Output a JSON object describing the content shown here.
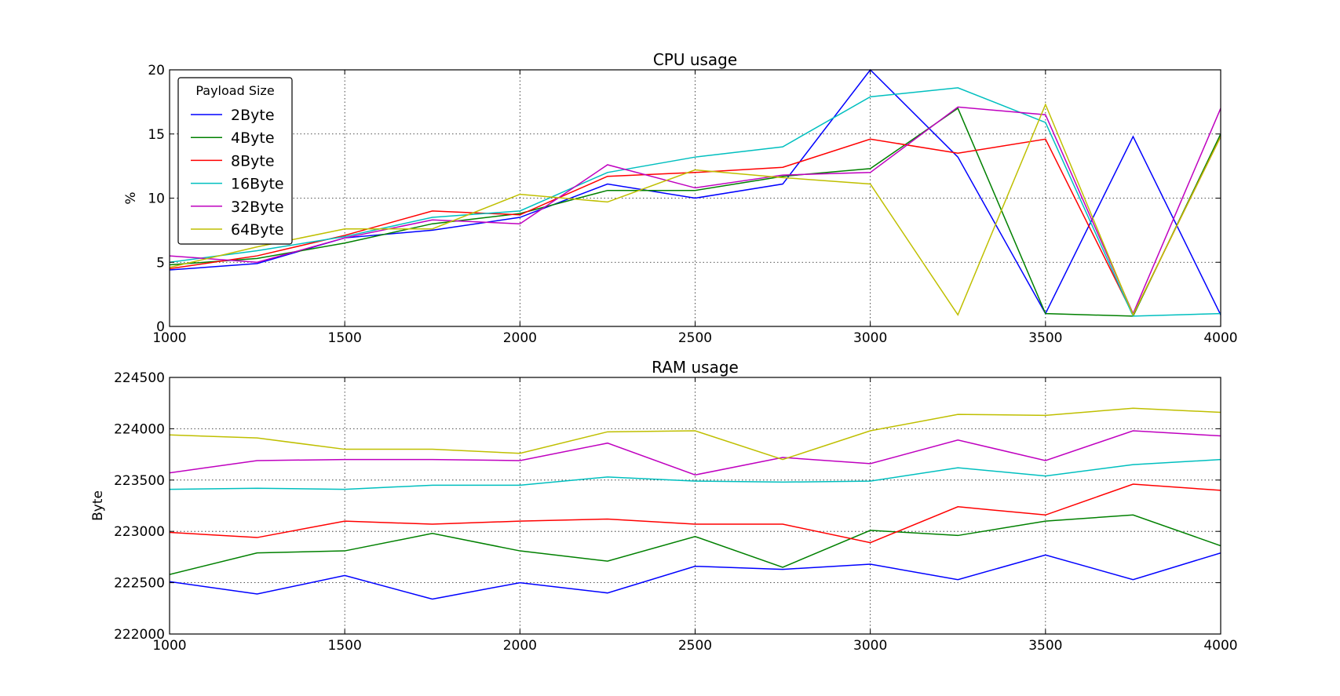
{
  "chart_data": [
    {
      "type": "line",
      "title": "CPU usage",
      "xlabel": "",
      "ylabel": "%",
      "xlim": [
        1000,
        4000
      ],
      "ylim": [
        0,
        20
      ],
      "x_ticks": [
        1000,
        1500,
        2000,
        2500,
        3000,
        3500,
        4000
      ],
      "y_ticks": [
        0,
        5,
        10,
        15,
        20
      ],
      "grid": true,
      "legend": {
        "title": "Payload Size",
        "placement": "top-left"
      },
      "x": [
        1000,
        1250,
        1500,
        1750,
        2000,
        2250,
        2500,
        2750,
        3000,
        3250,
        3500,
        3750,
        4000
      ],
      "series": [
        {
          "name": "2Byte",
          "color": "#0000ff",
          "values": [
            4.4,
            4.9,
            6.9,
            7.5,
            8.5,
            11.1,
            10.0,
            11.1,
            20.0,
            13.2,
            1.0,
            14.8,
            0.9
          ]
        },
        {
          "name": "4Byte",
          "color": "#008000",
          "values": [
            4.8,
            5.3,
            6.5,
            8.0,
            8.8,
            10.6,
            10.6,
            11.7,
            12.3,
            17.0,
            1.0,
            0.8,
            15.0
          ]
        },
        {
          "name": "8Byte",
          "color": "#ff0000",
          "values": [
            4.5,
            5.5,
            7.1,
            9.0,
            8.7,
            11.7,
            12.0,
            12.4,
            14.6,
            13.5,
            14.6,
            0.9,
            14.8
          ]
        },
        {
          "name": "16Byte",
          "color": "#00bfbf",
          "values": [
            5.0,
            5.9,
            7.0,
            8.5,
            9.0,
            12.0,
            13.2,
            14.0,
            17.9,
            18.6,
            15.9,
            0.8,
            1.0
          ]
        },
        {
          "name": "32Byte",
          "color": "#bf00bf",
          "values": [
            5.5,
            5.0,
            6.9,
            8.3,
            8.0,
            12.6,
            10.8,
            11.8,
            12.0,
            17.1,
            16.5,
            1.0,
            17.0
          ]
        },
        {
          "name": "64Byte",
          "color": "#bfbf00",
          "values": [
            4.6,
            6.2,
            7.6,
            7.6,
            10.3,
            9.7,
            12.2,
            11.6,
            11.1,
            0.9,
            17.3,
            0.9,
            14.8
          ]
        }
      ]
    },
    {
      "type": "line",
      "title": "RAM usage",
      "xlabel": "",
      "ylabel": "Byte",
      "xlim": [
        1000,
        4000
      ],
      "ylim": [
        222000,
        224500
      ],
      "x_ticks": [
        1000,
        1500,
        2000,
        2500,
        3000,
        3500,
        4000
      ],
      "y_ticks": [
        222000,
        222500,
        223000,
        223500,
        224000,
        224500
      ],
      "grid": true,
      "x": [
        1000,
        1250,
        1500,
        1750,
        2000,
        2250,
        2500,
        2750,
        3000,
        3250,
        3500,
        3750,
        4000
      ],
      "series": [
        {
          "color": "#0000ff",
          "values": [
            222510,
            222390,
            222570,
            222340,
            222500,
            222400,
            222660,
            222630,
            222680,
            222530,
            222770,
            222530,
            222790
          ]
        },
        {
          "color": "#008000",
          "values": [
            222580,
            222790,
            222810,
            222980,
            222810,
            222710,
            222950,
            222650,
            223010,
            222960,
            223100,
            223160,
            222860
          ]
        },
        {
          "color": "#ff0000",
          "values": [
            222990,
            222940,
            223100,
            223070,
            223100,
            223120,
            223070,
            223070,
            222890,
            223240,
            223160,
            223460,
            223400
          ]
        },
        {
          "color": "#00bfbf",
          "values": [
            223410,
            223420,
            223410,
            223450,
            223450,
            223530,
            223490,
            223480,
            223490,
            223620,
            223540,
            223650,
            223700
          ]
        },
        {
          "color": "#bf00bf",
          "values": [
            223570,
            223690,
            223700,
            223700,
            223690,
            223860,
            223550,
            223720,
            223660,
            223890,
            223690,
            223980,
            223930
          ]
        },
        {
          "color": "#bfbf00",
          "values": [
            223940,
            223910,
            223800,
            223800,
            223760,
            223970,
            223980,
            223700,
            223980,
            224140,
            224130,
            224200,
            224160
          ]
        }
      ]
    }
  ]
}
